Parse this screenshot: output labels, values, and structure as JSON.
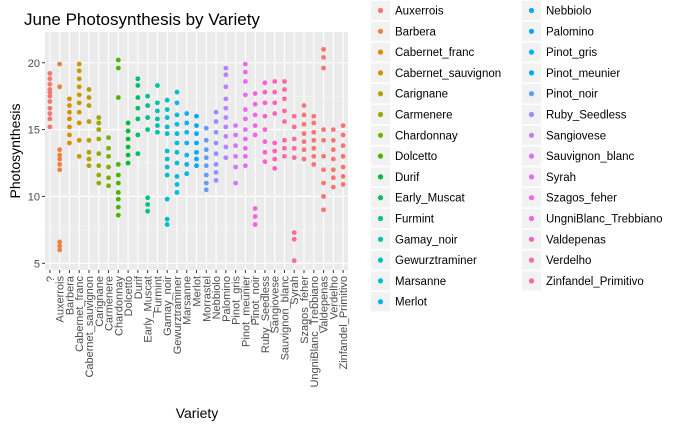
{
  "chart_data": {
    "type": "scatter",
    "title": "June Photosynthesis by Variety",
    "xlabel": "Variety",
    "ylabel": "Photosynthesis",
    "ylim": [
      4.5,
      22.3
    ],
    "yticks": [
      5,
      10,
      15,
      20
    ],
    "grid": true,
    "legend_position": "right",
    "categories": [
      "?",
      "Auxerrois",
      "Barbera",
      "Cabernet_franc",
      "Cabernet_sauvignon",
      "Carignane",
      "Carmenere",
      "Chardonnay",
      "Dolcetto",
      "Durif",
      "Early_Muscat",
      "Furmint",
      "Gamay_noir",
      "Gewurztraminer",
      "Marsanne",
      "Merlot",
      "Morrastel",
      "Nebbiolo",
      "Palomino",
      "Pinot_gris",
      "Pinot_meunier",
      "Pinot_noir",
      "Ruby_Seedless",
      "Sangiovese",
      "Sauvignon_blanc",
      "Syrah",
      "Szagos_feher",
      "UngniBlanc_Trebbiano",
      "Valdepenas",
      "Verdelho",
      "Zinfandel_Primitivo"
    ],
    "colors": [
      "#F8766D",
      "#ED813E",
      "#DE8C00",
      "#CD9600",
      "#B79F00",
      "#9DA700",
      "#7CAE00",
      "#49B500",
      "#00BA38",
      "#00BE67",
      "#00C08B",
      "#00C1A9",
      "#00BFC4",
      "#00BBDC",
      "#00B4EF",
      "#00A9FF",
      "#619CFF",
      "#9590FF",
      "#B983FF",
      "#D575FE",
      "#E76BF3",
      "#F564E3",
      "#FD61D1",
      "#FF62BC",
      "#FF68A1",
      "#FF6C91",
      "#F8766D",
      "#F8766D",
      "#F8766D",
      "#F8766D",
      "#F8766D"
    ],
    "legend": [
      "Auxerrois",
      "Barbera",
      "Cabernet_franc",
      "Cabernet_sauvignon",
      "Carignane",
      "Carmenere",
      "Chardonnay",
      "Dolcetto",
      "Durif",
      "Early_Muscat",
      "Furmint",
      "Gamay_noir",
      "Gewurztraminer",
      "Marsanne",
      "Merlot",
      "Nebbiolo",
      "Palomino",
      "Pinot_gris",
      "Pinot_meunier",
      "Pinot_noir",
      "Ruby_Seedless",
      "Sangiovese",
      "Sauvignon_blanc",
      "Syrah",
      "Szagos_feher",
      "UngniBlanc_Trebbiano",
      "Valdepenas",
      "Verdelho",
      "Zinfandel_Primitivo"
    ],
    "legend_colors": [
      "#F8766D",
      "#ED813E",
      "#DE8C00",
      "#CD9600",
      "#B79F00",
      "#9DA700",
      "#7CAE00",
      "#49B500",
      "#00BA38",
      "#00BE67",
      "#00C08B",
      "#00C1A9",
      "#00BFC4",
      "#00BBDC",
      "#00B4EF",
      "#00A9FF",
      "#00A5FF",
      "#00B0F6",
      "#00A9FF",
      "#619CFF",
      "#9590FF",
      "#B983FF",
      "#D575FE",
      "#E76BF3",
      "#F564E3",
      "#FD61D1",
      "#FF62BC",
      "#FF68A1",
      "#FF6C91"
    ],
    "points": [
      [
        15.2,
        15.8,
        16.2,
        16.6,
        17.1,
        17.5,
        17.8,
        18.0,
        18.4,
        18.8,
        19.2
      ],
      [
        6.0,
        6.3,
        6.6,
        12.0,
        12.4,
        12.8,
        13.1,
        13.5,
        18.2,
        19.9
      ],
      [
        14.0,
        14.6,
        15.2,
        15.8,
        16.3,
        16.8,
        17.3
      ],
      [
        13.0,
        14.2,
        15.5,
        16.3,
        17.0,
        17.6,
        18.2,
        18.8,
        19.4,
        19.9
      ],
      [
        12.3,
        12.8,
        13.3,
        14.2,
        15.6,
        16.8,
        17.4,
        18.0
      ],
      [
        11.0,
        11.6,
        12.3,
        13.2,
        14.3,
        15.0,
        15.5,
        15.9
      ],
      [
        10.8,
        11.4,
        12.2,
        13.0,
        13.6,
        14.4
      ],
      [
        8.6,
        9.2,
        9.8,
        10.3,
        11.0,
        11.6,
        12.4,
        17.4,
        19.6,
        20.2
      ],
      [
        12.5,
        13.1,
        13.7,
        14.3,
        14.9,
        15.5
      ],
      [
        13.2,
        14.6,
        15.8,
        16.6,
        17.4,
        18.3,
        18.8
      ],
      [
        8.9,
        9.4,
        9.9,
        15.0,
        15.9,
        16.8,
        17.5
      ],
      [
        14.8,
        15.3,
        15.8,
        16.4,
        17.0,
        18.3
      ],
      [
        7.9,
        8.3,
        9.8,
        11.6,
        12.2,
        12.8,
        13.4,
        14.7,
        15.2,
        15.9,
        16.5,
        17.2
      ],
      [
        10.3,
        10.9,
        11.5,
        12.5,
        13.3,
        14.0,
        14.7,
        15.4,
        16.1,
        17.0,
        17.8
      ],
      [
        11.7,
        12.4,
        13.1,
        14.0,
        14.8,
        15.5,
        16.2
      ],
      [
        12.3,
        12.8,
        13.3,
        14.0,
        14.7,
        15.3,
        16.0
      ],
      [
        10.5,
        11.0,
        11.6,
        12.3,
        12.9,
        13.5,
        14.2,
        15.1
      ],
      [
        11.2,
        11.8,
        12.4,
        13.2,
        14.0,
        14.8,
        15.6,
        16.3
      ],
      [
        12.9,
        13.7,
        14.5,
        15.2,
        15.9,
        16.6,
        17.3,
        18.2,
        19.1,
        19.6
      ],
      [
        11.0,
        12.2,
        13.0,
        13.8,
        14.6,
        15.3
      ],
      [
        12.3,
        13.0,
        13.6,
        14.3,
        15.0,
        15.8,
        16.5,
        17.6,
        18.6,
        19.3,
        19.9
      ],
      [
        7.9,
        8.5,
        9.1,
        14.6,
        15.3,
        16.1,
        16.9,
        17.7
      ],
      [
        12.6,
        13.3,
        14.1,
        15.0,
        16.0,
        17.0,
        17.8,
        18.5
      ],
      [
        12.1,
        12.8,
        13.4,
        14.0,
        16.2,
        17.0,
        17.8,
        18.6
      ],
      [
        13.0,
        13.6,
        14.2,
        15.6,
        16.4,
        17.3,
        18.0,
        18.6
      ],
      [
        5.2,
        6.8,
        7.3,
        12.9,
        13.6,
        14.3,
        15.2,
        16.0
      ],
      [
        12.8,
        13.5,
        14.1,
        14.7,
        15.4,
        16.1,
        16.8
      ],
      [
        12.4,
        13.0,
        13.6,
        14.2,
        14.8,
        15.5,
        16.0
      ],
      [
        9.0,
        10.0,
        11.0,
        12.0,
        13.0,
        14.2,
        15.0,
        19.6,
        20.4,
        21.0
      ],
      [
        10.7,
        11.4,
        12.0,
        12.8,
        13.5,
        14.2,
        15.0
      ],
      [
        10.9,
        11.5,
        12.2,
        13.0,
        13.8,
        14.6,
        15.3
      ]
    ]
  }
}
